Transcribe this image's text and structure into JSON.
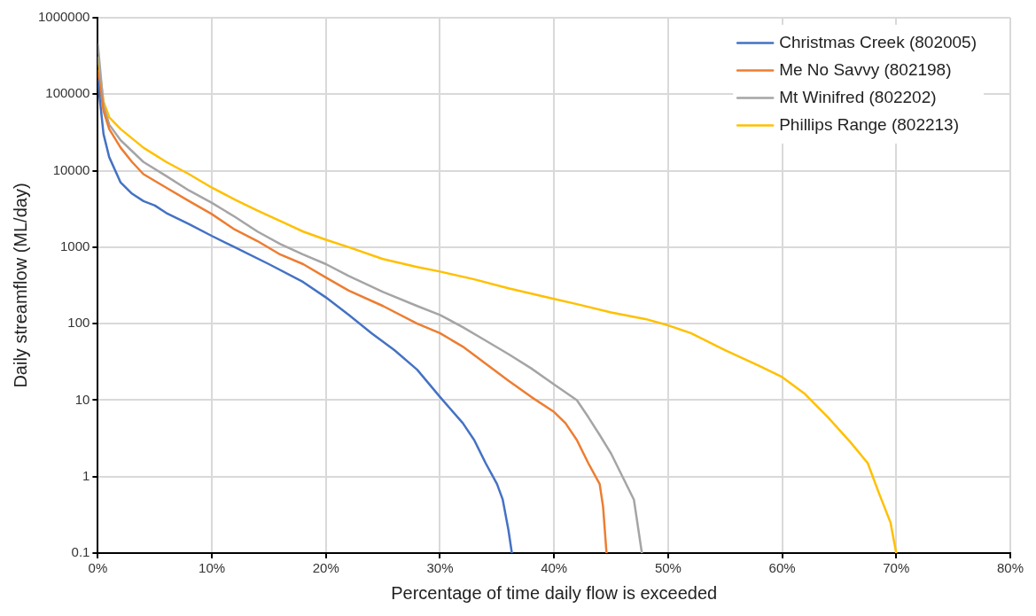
{
  "chart_data": {
    "type": "line",
    "xlabel": "Percentage of time daily flow is exceeded",
    "ylabel": "Daily streamflow (ML/day)",
    "log": "y",
    "grid": true,
    "legend": "top right",
    "marker": "none",
    "line_style": "solid",
    "xlim": [
      0,
      80
    ],
    "xticks": [
      {
        "value": 0,
        "label": "0%"
      },
      {
        "value": 10,
        "label": "10%"
      },
      {
        "value": 20,
        "label": "20%"
      },
      {
        "value": 30,
        "label": "30%"
      },
      {
        "value": 40,
        "label": "40%"
      },
      {
        "value": 50,
        "label": "50%"
      },
      {
        "value": 60,
        "label": "60%"
      },
      {
        "value": 70,
        "label": "70%"
      },
      {
        "value": 80,
        "label": "80%"
      }
    ],
    "ylim": [
      0.1,
      1000000
    ],
    "yticks": [
      0.1,
      1,
      10,
      100,
      1000,
      10000,
      100000,
      1000000
    ],
    "series": [
      {
        "name": "Christmas Creek (802005)",
        "color": "#4472c4",
        "x": [
          0,
          0.5,
          1,
          2,
          3,
          4,
          5,
          6,
          8,
          10,
          12,
          15,
          18,
          20,
          22,
          24,
          26,
          28,
          30,
          32,
          33,
          34,
          35,
          35.5,
          36,
          36.3
        ],
        "values": [
          150000,
          30000,
          15000,
          7000,
          5000,
          4000,
          3500,
          2800,
          2000,
          1400,
          1000,
          600,
          350,
          220,
          130,
          75,
          45,
          25,
          11,
          5,
          3,
          1.5,
          0.8,
          0.5,
          0.2,
          0.1
        ]
      },
      {
        "name": "Me No Savvy (802198)",
        "color": "#ed7d31",
        "x": [
          0,
          0.5,
          1,
          2,
          3,
          4,
          6,
          8,
          10,
          12,
          14,
          16,
          18,
          20,
          22,
          25,
          28,
          30,
          32,
          34,
          36,
          38,
          40,
          41,
          42,
          43,
          44,
          44.3,
          44.6
        ],
        "values": [
          200000,
          60000,
          35000,
          20000,
          13000,
          9000,
          6000,
          4000,
          2700,
          1700,
          1200,
          800,
          600,
          400,
          270,
          170,
          100,
          75,
          50,
          30,
          18,
          11,
          7,
          5,
          3,
          1.5,
          0.8,
          0.4,
          0.1
        ]
      },
      {
        "name": "Mt Winifred (802202)",
        "color": "#a5a5a5",
        "x": [
          0,
          0.5,
          1,
          2,
          4,
          6,
          8,
          10,
          12,
          14,
          16,
          18,
          20,
          22,
          25,
          28,
          30,
          32,
          34,
          36,
          38,
          40,
          42,
          43,
          44,
          45,
          46,
          47,
          47.7
        ],
        "values": [
          450000,
          70000,
          40000,
          25000,
          13000,
          8500,
          5500,
          3800,
          2500,
          1600,
          1100,
          800,
          600,
          420,
          260,
          170,
          130,
          90,
          60,
          40,
          26,
          16,
          10,
          6,
          3.5,
          2,
          1,
          0.5,
          0.1
        ]
      },
      {
        "name": "Phillips Range (802213)",
        "color": "#ffc000",
        "x": [
          0,
          0.5,
          1,
          2,
          4,
          6,
          8,
          10,
          12,
          14,
          16,
          18,
          20,
          22,
          25,
          28,
          30,
          33,
          36,
          40,
          42,
          45,
          48,
          50,
          52,
          55,
          58,
          60,
          62,
          64,
          66,
          67.5,
          68.5,
          69.5,
          70
        ],
        "values": [
          300000,
          80000,
          50000,
          35000,
          20000,
          13000,
          9000,
          6000,
          4200,
          3000,
          2200,
          1600,
          1250,
          1000,
          700,
          550,
          480,
          380,
          290,
          210,
          180,
          140,
          115,
          95,
          75,
          45,
          28,
          20,
          12,
          6,
          2.8,
          1.5,
          0.6,
          0.25,
          0.1
        ]
      }
    ]
  }
}
